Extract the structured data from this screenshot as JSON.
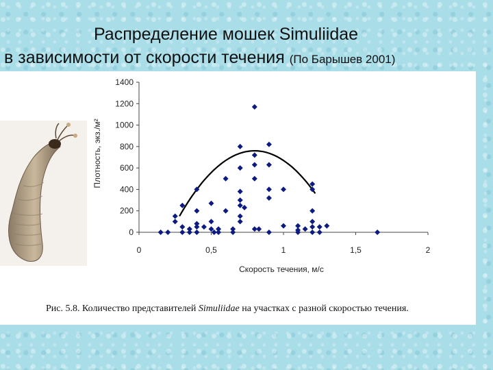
{
  "slide": {
    "title_line1": "Распределение мошек Simuliidae",
    "title_line2": "в зависимости от скорости течения",
    "title_source": "(По Барышев 2001)"
  },
  "photo": {
    "label": ""
  },
  "caption": {
    "prefix": "Рис. 5.8. Количество представителей ",
    "italic": "Simuliidae",
    "suffix": " на участках с разной скоростью течения."
  },
  "colors": {
    "marker": "#0d1a80",
    "curve": "#000000",
    "axis": "#444444"
  },
  "chart_data": {
    "type": "scatter",
    "xlabel": "Скорость течения, м/с",
    "ylabel": "Плотность, экз./м²",
    "xlim": [
      0,
      2
    ],
    "ylim": [
      0,
      1400
    ],
    "xticks": [
      0,
      0.5,
      1,
      1.5,
      2
    ],
    "xtick_labels": [
      "0",
      "0,5",
      "1",
      "1,5",
      "2"
    ],
    "yticks": [
      0,
      200,
      400,
      600,
      800,
      1000,
      1200,
      1400
    ],
    "ytick_labels": [
      "0",
      "200",
      "400",
      "600",
      "800",
      "1000",
      "1200",
      "1400"
    ],
    "points": [
      [
        0.15,
        0
      ],
      [
        0.2,
        0
      ],
      [
        0.25,
        100
      ],
      [
        0.25,
        150
      ],
      [
        0.3,
        250
      ],
      [
        0.3,
        50
      ],
      [
        0.3,
        0
      ],
      [
        0.35,
        30
      ],
      [
        0.35,
        0
      ],
      [
        0.4,
        400
      ],
      [
        0.4,
        200
      ],
      [
        0.4,
        80
      ],
      [
        0.4,
        50
      ],
      [
        0.4,
        0
      ],
      [
        0.45,
        50
      ],
      [
        0.5,
        270
      ],
      [
        0.5,
        100
      ],
      [
        0.5,
        30
      ],
      [
        0.52,
        0
      ],
      [
        0.55,
        30
      ],
      [
        0.55,
        0
      ],
      [
        0.6,
        500
      ],
      [
        0.6,
        200
      ],
      [
        0.65,
        30
      ],
      [
        0.65,
        0
      ],
      [
        0.7,
        800
      ],
      [
        0.7,
        600
      ],
      [
        0.7,
        380
      ],
      [
        0.7,
        300
      ],
      [
        0.7,
        250
      ],
      [
        0.7,
        150
      ],
      [
        0.7,
        100
      ],
      [
        0.73,
        230
      ],
      [
        0.8,
        1170
      ],
      [
        0.8,
        720
      ],
      [
        0.8,
        630
      ],
      [
        0.8,
        500
      ],
      [
        0.8,
        30
      ],
      [
        0.83,
        30
      ],
      [
        0.9,
        820
      ],
      [
        0.9,
        630
      ],
      [
        0.9,
        400
      ],
      [
        0.9,
        320
      ],
      [
        0.9,
        0
      ],
      [
        1,
        400
      ],
      [
        1,
        60
      ],
      [
        1.1,
        60
      ],
      [
        1.1,
        20
      ],
      [
        1.1,
        0
      ],
      [
        1.15,
        30
      ],
      [
        1.2,
        450
      ],
      [
        1.2,
        400
      ],
      [
        1.2,
        200
      ],
      [
        1.2,
        100
      ],
      [
        1.2,
        50
      ],
      [
        1.2,
        0
      ],
      [
        1.25,
        50
      ],
      [
        1.25,
        0
      ],
      [
        1.3,
        60
      ],
      [
        1.65,
        0
      ]
    ],
    "trend_line": {
      "type": "quadratic",
      "x_range": [
        0.28,
        1.22
      ],
      "coefficients": {
        "a": -2255,
        "b": 3608,
        "c": -683
      }
    },
    "grid": false,
    "legend": "none"
  }
}
